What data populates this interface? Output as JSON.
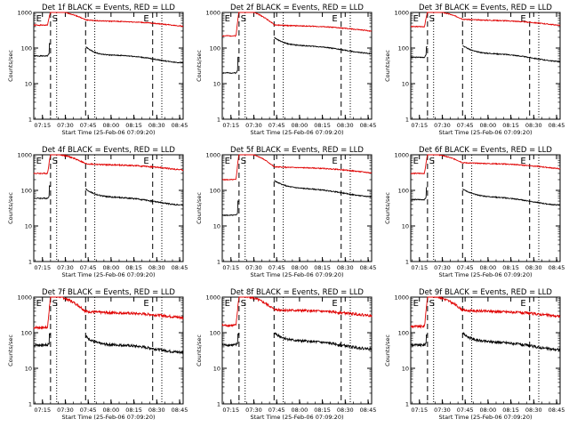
{
  "chart_data": {
    "type": "line",
    "layout": "3x3 grid",
    "start_time_label": "Start Time (25-Feb-06 07:09:20)",
    "ylabel": "Counts/sec",
    "y_scale": "log",
    "ylim": [
      1,
      1000
    ],
    "y_ticks": [
      "1",
      "10",
      "100",
      "1000"
    ],
    "x_ticks": [
      "07:15",
      "07:30",
      "07:45",
      "08:00",
      "08:15",
      "08:30",
      "08:45"
    ],
    "xlim_minutes": [
      0,
      98
    ],
    "dashed_markers_minutes": [
      11,
      34,
      78
    ],
    "dotted_markers_minutes": [
      15,
      40,
      84
    ],
    "interval_labels": [
      "E",
      "S",
      "E"
    ],
    "series_legend": {
      "black": "Events",
      "red": "LLD"
    },
    "colors": {
      "events": "#000000",
      "lld": "#e00000"
    },
    "panels": [
      {
        "title": "Det 1f BLACK = Events, RED = LLD",
        "events_base": 60,
        "events_spike": 130,
        "events_post": 110,
        "lld_base": 440,
        "lld_flare": 1100,
        "lld_post": 620,
        "decay": 6,
        "noise": 0.03
      },
      {
        "title": "Det 2f BLACK = Events, RED = LLD",
        "events_base": 20,
        "events_spike": 55,
        "events_post": 200,
        "lld_base": 220,
        "lld_flare": 1200,
        "lld_post": 450,
        "decay": 7,
        "noise": 0.03
      },
      {
        "title": "Det 3f BLACK = Events, RED = LLD",
        "events_base": 55,
        "events_spike": 110,
        "events_post": 120,
        "lld_base": 400,
        "lld_flare": 1100,
        "lld_post": 650,
        "decay": 7,
        "noise": 0.03
      },
      {
        "title": "Det 4f BLACK = Events, RED = LLD",
        "events_base": 60,
        "events_spike": 130,
        "events_post": 110,
        "lld_base": 300,
        "lld_flare": 1050,
        "lld_post": 560,
        "decay": 7,
        "noise": 0.04
      },
      {
        "title": "Det 5f BLACK = Events, RED = LLD",
        "events_base": 20,
        "events_spike": 50,
        "events_post": 190,
        "lld_base": 200,
        "lld_flare": 1200,
        "lld_post": 460,
        "decay": 8,
        "noise": 0.03
      },
      {
        "title": "Det 6f BLACK = Events, RED = LLD",
        "events_base": 55,
        "events_spike": 120,
        "events_post": 110,
        "lld_base": 300,
        "lld_flare": 1050,
        "lld_post": 600,
        "decay": 8,
        "noise": 0.03
      },
      {
        "title": "Det 7f BLACK = Events, RED = LLD",
        "events_base": 45,
        "events_spike": 90,
        "events_post": 80,
        "lld_base": 140,
        "lld_flare": 1100,
        "lld_post": 400,
        "decay": 6,
        "noise": 0.08
      },
      {
        "title": "Det 8f BLACK = Events, RED = LLD",
        "events_base": 45,
        "events_spike": 90,
        "events_post": 100,
        "lld_base": 160,
        "lld_flare": 1100,
        "lld_post": 450,
        "decay": 7,
        "noise": 0.08
      },
      {
        "title": "Det 9f BLACK = Events, RED = LLD",
        "events_base": 45,
        "events_spike": 90,
        "events_post": 95,
        "lld_base": 150,
        "lld_flare": 1100,
        "lld_post": 430,
        "decay": 7,
        "noise": 0.08
      }
    ]
  }
}
